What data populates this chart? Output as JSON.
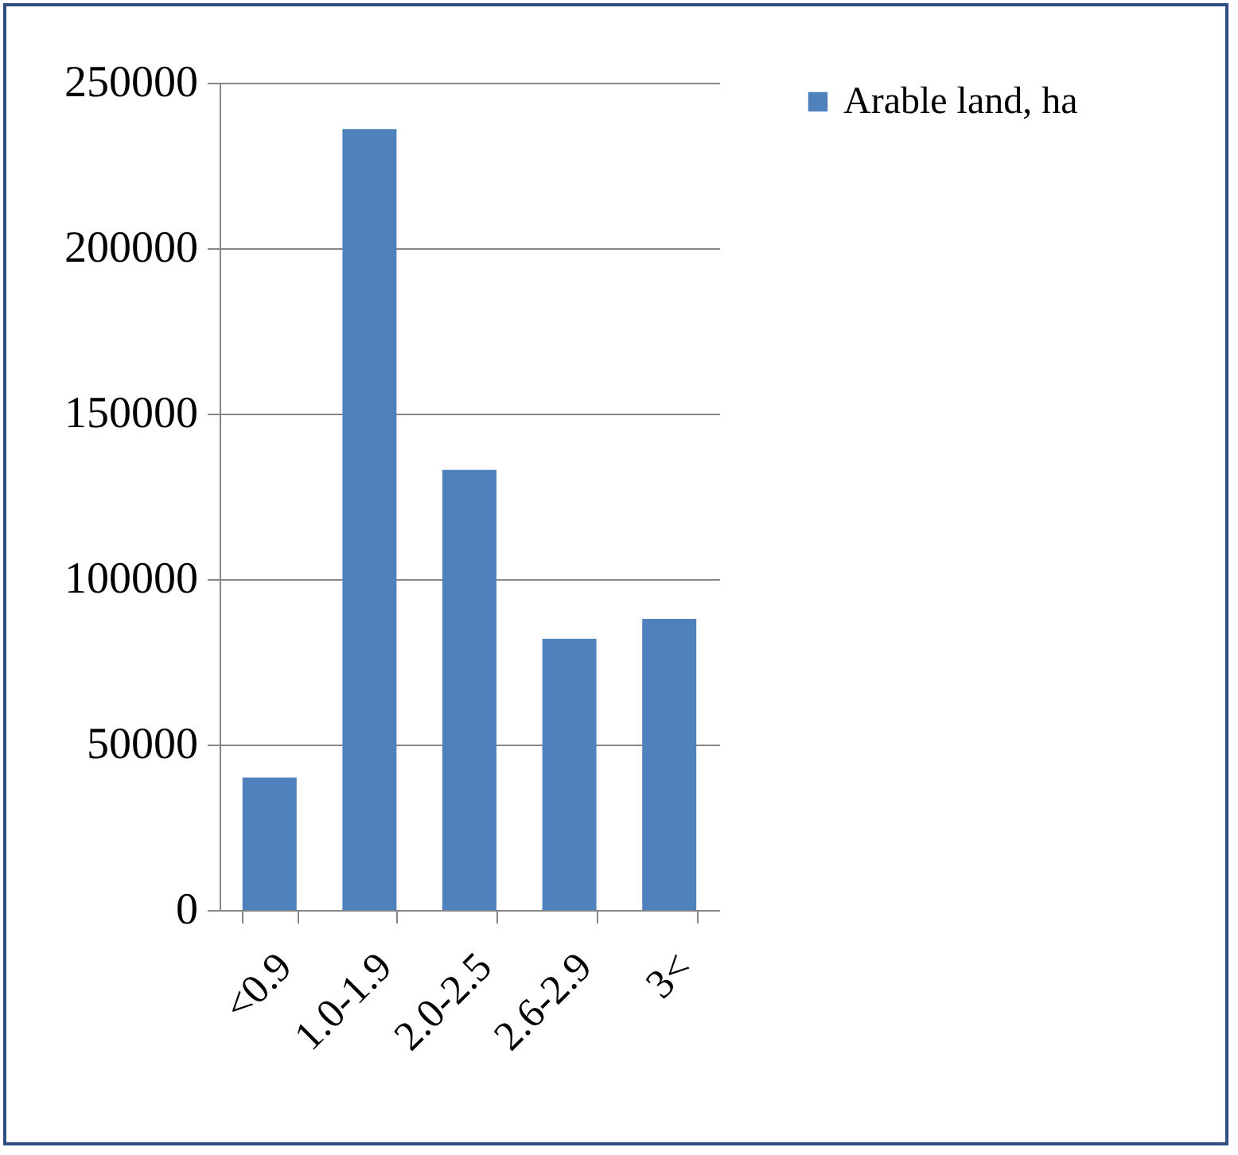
{
  "chart_data": {
    "type": "bar",
    "categories": [
      "<0.9",
      "1.0-1.9",
      "2.0-2.5",
      "2.6-2.9",
      "3<"
    ],
    "series": [
      {
        "name": "Arable land, ha",
        "color": "#4f81bd",
        "values": [
          40000,
          236000,
          133000,
          82000,
          88000
        ]
      }
    ],
    "ylim": [
      0,
      250000
    ],
    "yticks": [
      0,
      50000,
      100000,
      150000,
      200000,
      250000
    ],
    "grid": "y",
    "legend": "right"
  }
}
